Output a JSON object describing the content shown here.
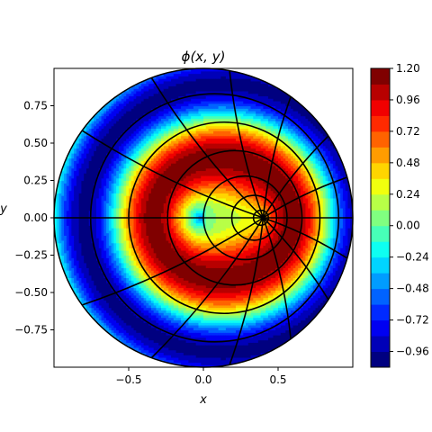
{
  "chart_data": {
    "type": "heatmap",
    "title": "ϕ(x, y)",
    "xlabel": "x",
    "ylabel": "y",
    "xlim": [
      -1.0,
      1.0
    ],
    "ylim": [
      -1.0,
      1.0
    ],
    "xticks": [
      -0.5,
      0.0,
      0.5
    ],
    "xtick_labels": [
      "−0.5",
      "0.0",
      "0.5"
    ],
    "yticks": [
      -0.75,
      -0.5,
      -0.25,
      0.0,
      0.25,
      0.5,
      0.75
    ],
    "ytick_labels": [
      "−0.75",
      "−0.50",
      "−0.25",
      "0.00",
      "0.25",
      "0.50",
      "0.75"
    ],
    "colorbar": {
      "range": [
        -1.08,
        1.2
      ],
      "ticks": [
        1.2,
        0.96,
        0.72,
        0.48,
        0.24,
        0.0,
        -0.24,
        -0.48,
        -0.72,
        -0.96
      ],
      "tick_labels": [
        "1.20",
        "0.96",
        "0.72",
        "0.48",
        "0.24",
        "0.00",
        "−0.24",
        "−0.48",
        "−0.72",
        "−0.96"
      ],
      "colormap": "jet"
    },
    "domain": "unit disk",
    "field_pattern": "concentric-like rings of alternating sign, eccentric toward a focus point",
    "focus_point": [
      0.4,
      0.0
    ],
    "grid": "black bipolar-like coordinate lines radiating from the focus point plus eccentric circles",
    "colors": {
      "low": "#00007f",
      "high": "#7f0000",
      "grid_lines": "#000000"
    }
  }
}
